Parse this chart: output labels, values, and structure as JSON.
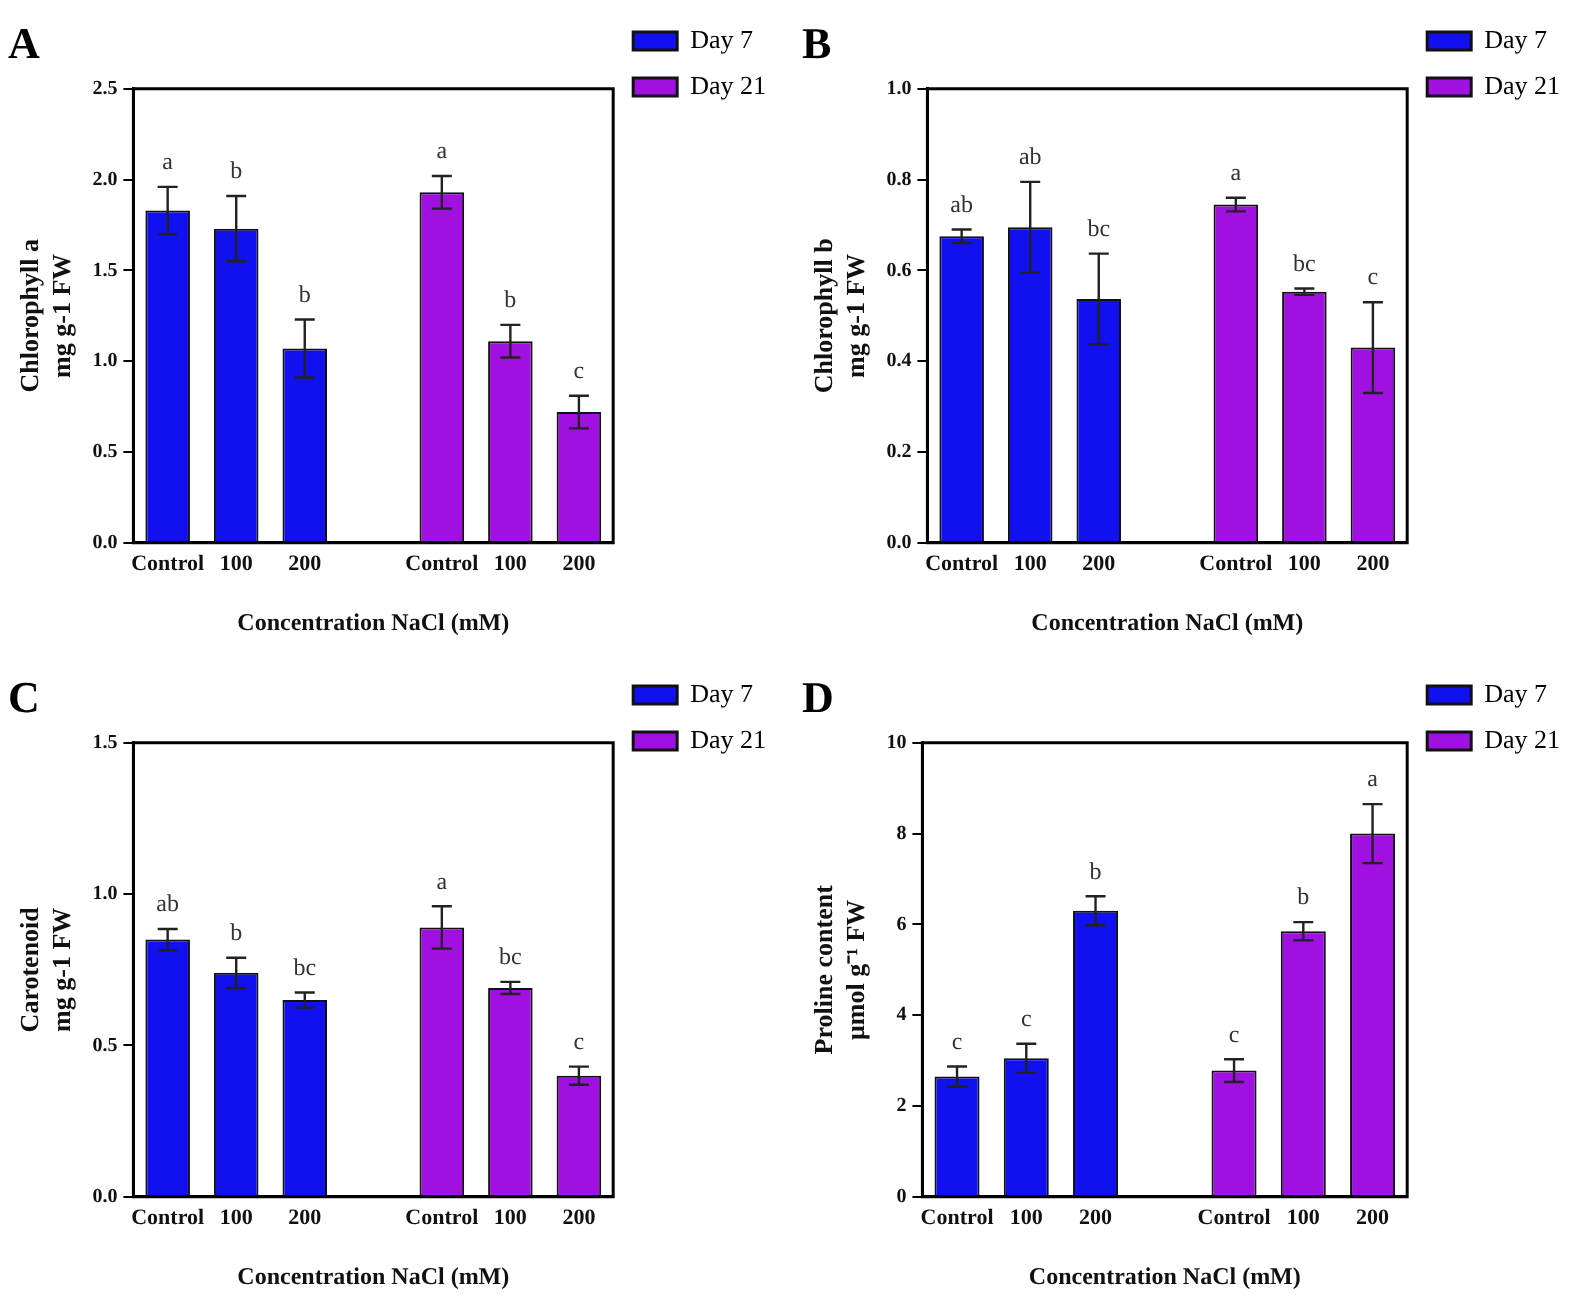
{
  "chart_data": [
    {
      "type": "bar",
      "title": "A",
      "xlabel": "Concentration NaCl (mM)",
      "ylabel": "Chlorophyll a\nmg g-1 FW",
      "categories": [
        "Control",
        "100",
        "200",
        null,
        "Control",
        "100",
        "200"
      ],
      "ylim": [
        0,
        2.5
      ],
      "yticks": [
        {
          "value": 0,
          "label": "0.0"
        },
        {
          "value": 0.5,
          "label": "0.5"
        },
        {
          "value": 1,
          "label": "1.0"
        },
        {
          "value": 1.5,
          "label": "1.5"
        },
        {
          "value": 2,
          "label": "2.0"
        },
        {
          "value": 2.5,
          "label": "2.5"
        }
      ],
      "legend": "right",
      "series": [
        {
          "name": "Day 7",
          "color": "#1010f0",
          "values": [
            1.83,
            1.73,
            1.07,
            null,
            null,
            null,
            null
          ],
          "errors": [
            0.13,
            0.18,
            0.16,
            null,
            null,
            null,
            null
          ],
          "value_labels": [
            "a",
            "b",
            "b",
            null,
            null,
            null,
            null
          ]
        },
        {
          "name": "Day 21",
          "color": "#a010e0",
          "values": [
            null,
            null,
            null,
            null,
            1.93,
            1.11,
            0.72
          ],
          "errors": [
            null,
            null,
            null,
            null,
            0.09,
            0.09,
            0.09
          ],
          "value_labels": [
            null,
            null,
            null,
            null,
            "a",
            "b",
            "c"
          ]
        }
      ]
    },
    {
      "type": "bar",
      "title": "B",
      "xlabel": "Concentration NaCl (mM)",
      "ylabel": "Chlorophyll b\nmg g-1 FW",
      "categories": [
        "Control",
        "100",
        "200",
        null,
        "Control",
        "100",
        "200"
      ],
      "ylim": [
        0,
        1
      ],
      "yticks": [
        {
          "value": 0,
          "label": "0.0"
        },
        0.2,
        0.4,
        0.6,
        0.8,
        {
          "value": 1,
          "label": "1.0"
        }
      ],
      "legend": "right",
      "series": [
        {
          "name": "Day 7",
          "color": "#1010f0",
          "values": [
            0.675,
            0.695,
            0.537,
            null,
            null,
            null,
            null
          ],
          "errors": [
            0.015,
            0.1,
            0.1,
            null,
            null,
            null,
            null
          ],
          "value_labels": [
            "ab",
            "ab",
            "bc",
            null,
            null,
            null,
            null
          ]
        },
        {
          "name": "Day 21",
          "color": "#a010e0",
          "values": [
            null,
            null,
            null,
            null,
            0.745,
            0.553,
            0.43
          ],
          "errors": [
            null,
            null,
            null,
            null,
            0.015,
            0.007,
            0.1
          ],
          "value_labels": [
            null,
            null,
            null,
            null,
            "a",
            "bc",
            "c"
          ]
        }
      ]
    },
    {
      "type": "bar",
      "title": "C",
      "xlabel": "Concentration NaCl (mM)",
      "ylabel": "Carotenoid\nmg g-1 FW",
      "categories": [
        "Control",
        "100",
        "200",
        null,
        "Control",
        "100",
        "200"
      ],
      "ylim": [
        0,
        1.5
      ],
      "yticks": [
        {
          "value": 0,
          "label": "0.0"
        },
        0.5,
        {
          "value": 1,
          "label": "1.0"
        },
        1.5
      ],
      "legend": "right",
      "series": [
        {
          "name": "Day 7",
          "color": "#1010f0",
          "values": [
            0.85,
            0.74,
            0.65,
            null,
            null,
            null,
            null
          ],
          "errors": [
            0.035,
            0.05,
            0.025,
            null,
            null,
            null,
            null
          ],
          "value_labels": [
            "ab",
            "b",
            "bc",
            null,
            null,
            null,
            null
          ]
        },
        {
          "name": "Day 21",
          "color": "#a010e0",
          "values": [
            null,
            null,
            null,
            null,
            0.89,
            0.69,
            0.4
          ],
          "errors": [
            null,
            null,
            null,
            null,
            0.07,
            0.02,
            0.03
          ],
          "value_labels": [
            null,
            null,
            null,
            null,
            "a",
            "bc",
            "c"
          ]
        }
      ]
    },
    {
      "type": "bar",
      "title": "D",
      "xlabel": "Concentration NaCl (mM)",
      "ylabel": "Proline content\nμmol g⁻¹ FW",
      "categories": [
        "Control",
        "100",
        "200",
        null,
        "Control",
        "100",
        "200"
      ],
      "ylim": [
        0,
        10
      ],
      "yticks": [
        0,
        2,
        4,
        6,
        8,
        10
      ],
      "legend": "right",
      "series": [
        {
          "name": "Day 7",
          "color": "#1010f0",
          "values": [
            2.65,
            3.05,
            6.3,
            null,
            null,
            null,
            null
          ],
          "errors": [
            0.22,
            0.32,
            0.32,
            null,
            null,
            null,
            null
          ],
          "value_labels": [
            "c",
            "c",
            "b",
            null,
            null,
            null,
            null
          ]
        },
        {
          "name": "Day 21",
          "color": "#a010e0",
          "values": [
            null,
            null,
            null,
            null,
            2.78,
            5.85,
            8.0
          ],
          "errors": [
            null,
            null,
            null,
            null,
            0.25,
            0.2,
            0.65
          ],
          "value_labels": [
            null,
            null,
            null,
            null,
            "c",
            "b",
            "a"
          ]
        }
      ]
    }
  ]
}
